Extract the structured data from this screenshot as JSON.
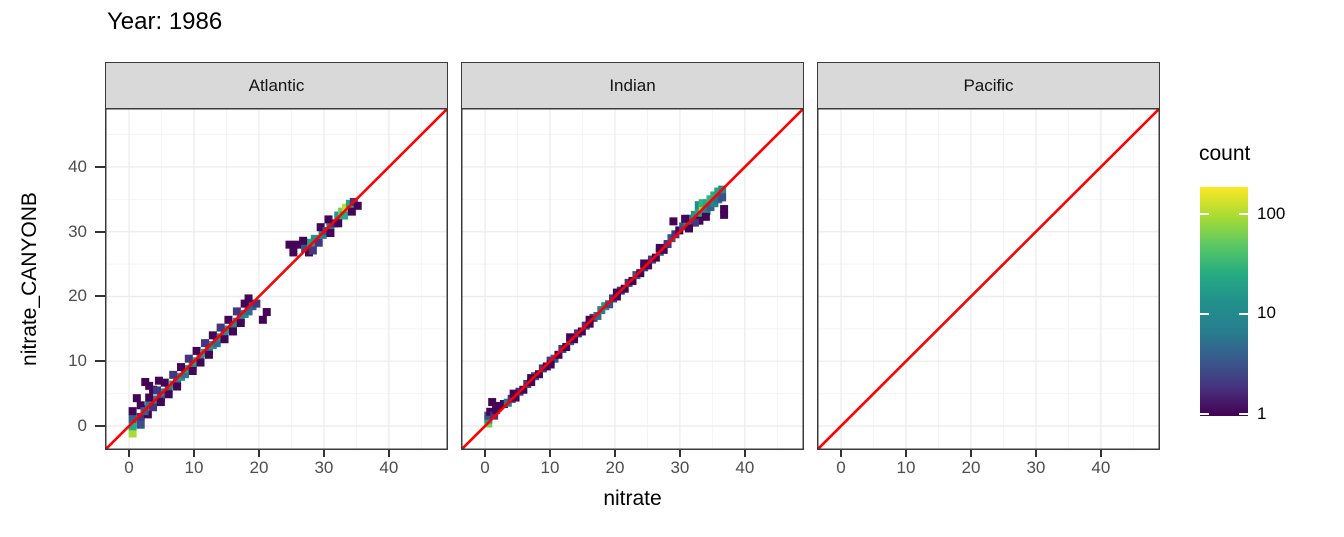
{
  "style": {
    "background": "#ffffff",
    "panel_background": "#ffffff",
    "grid_major": "#ebebeb",
    "grid_minor": "#f4f4f4",
    "panel_border": "#3b3b3b",
    "strip_background": "#d9d9d9",
    "strip_text_color": "#141414",
    "tick_label_color": "#4d4d4d",
    "tick_mark_color": "#333333",
    "title_color": "#000000"
  },
  "chart_data": {
    "type": "heatmap",
    "subtype": "bin2d",
    "title": "Year: 1986",
    "xlabel": "nitrate",
    "ylabel": "nitrate_CANYONB",
    "xlim": [
      -3.7,
      49.1
    ],
    "ylim": [
      -3.7,
      49.1
    ],
    "x_ticks": [
      0,
      10,
      20,
      30,
      40
    ],
    "y_ticks": [
      0,
      10,
      20,
      30,
      40
    ],
    "minor_ticks": [
      5,
      15,
      25,
      35,
      45
    ],
    "grid": "on",
    "legend_position": "right",
    "bin_size": 1.23,
    "reference_line": {
      "equation": "y = x",
      "color": "#ff0000",
      "width": 2.6
    },
    "color_scale": {
      "title": "count",
      "name": "viridis",
      "trans": "log10",
      "domain": [
        0.95,
        186
      ],
      "ticks": [
        100,
        10,
        1
      ],
      "stops": [
        {
          "t": 0.0,
          "color": "#440154"
        },
        {
          "t": 0.125,
          "color": "#46327e"
        },
        {
          "t": 0.25,
          "color": "#365c8d"
        },
        {
          "t": 0.375,
          "color": "#277f8e"
        },
        {
          "t": 0.5,
          "color": "#21918c"
        },
        {
          "t": 0.625,
          "color": "#27ad81"
        },
        {
          "t": 0.75,
          "color": "#5ec962"
        },
        {
          "t": 0.875,
          "color": "#aadc32"
        },
        {
          "t": 1.0,
          "color": "#fde725"
        }
      ]
    },
    "facets": [
      {
        "label": "Atlantic",
        "tiles": [
          [
            0.55,
            -1.15,
            95
          ],
          [
            0.55,
            -0.05,
            25
          ],
          [
            0.55,
            1.1,
            4
          ],
          [
            1.8,
            1.4,
            2
          ],
          [
            1.8,
            0.2,
            3
          ],
          [
            2.9,
            1.8,
            1
          ],
          [
            2.4,
            2.6,
            2
          ],
          [
            0.55,
            2.3,
            1
          ],
          [
            1.2,
            4.3,
            1
          ],
          [
            2.5,
            6.8,
            1
          ],
          [
            3.7,
            5.6,
            1
          ],
          [
            4.6,
            7.0,
            1
          ],
          [
            3.1,
            6.2,
            1
          ],
          [
            1.8,
            3.2,
            1
          ],
          [
            2.4,
            2.3,
            4
          ],
          [
            3.1,
            3.2,
            6
          ],
          [
            3.7,
            2.9,
            2
          ],
          [
            4.3,
            4.1,
            8
          ],
          [
            4.9,
            4.3,
            3
          ],
          [
            5.5,
            5.2,
            10
          ],
          [
            6.1,
            5.5,
            4
          ],
          [
            6.8,
            6.4,
            12
          ],
          [
            7.4,
            6.7,
            5
          ],
          [
            8.0,
            7.6,
            15
          ],
          [
            8.6,
            8.0,
            6
          ],
          [
            9.2,
            8.8,
            18
          ],
          [
            9.8,
            9.2,
            8
          ],
          [
            10.4,
            10.0,
            20
          ],
          [
            11.0,
            10.4,
            8
          ],
          [
            11.7,
            11.3,
            18
          ],
          [
            12.3,
            11.6,
            6
          ],
          [
            12.9,
            12.5,
            15
          ],
          [
            13.5,
            12.8,
            5
          ],
          [
            14.1,
            13.7,
            12
          ],
          [
            14.7,
            14.1,
            10
          ],
          [
            15.3,
            14.9,
            15
          ],
          [
            16.0,
            15.3,
            8
          ],
          [
            16.6,
            16.1,
            12
          ],
          [
            17.2,
            16.5,
            6
          ],
          [
            17.8,
            17.3,
            10
          ],
          [
            18.4,
            17.7,
            5
          ],
          [
            19.0,
            18.5,
            4
          ],
          [
            19.6,
            18.9,
            2
          ],
          [
            18.4,
            19.7,
            1
          ],
          [
            3.1,
            4.4,
            1
          ],
          [
            4.3,
            5.5,
            2
          ],
          [
            5.5,
            6.7,
            1
          ],
          [
            6.8,
            7.9,
            2
          ],
          [
            8.0,
            9.1,
            1
          ],
          [
            9.2,
            10.4,
            2
          ],
          [
            10.4,
            11.6,
            1
          ],
          [
            11.7,
            12.8,
            2
          ],
          [
            12.9,
            14.0,
            1
          ],
          [
            14.1,
            15.2,
            2
          ],
          [
            15.3,
            16.4,
            1
          ],
          [
            16.6,
            17.7,
            2
          ],
          [
            17.8,
            18.9,
            1
          ],
          [
            4.9,
            3.7,
            1
          ],
          [
            7.4,
            6.1,
            1
          ],
          [
            9.8,
            8.5,
            1
          ],
          [
            12.3,
            11.0,
            1
          ],
          [
            14.7,
            13.4,
            1
          ],
          [
            17.2,
            15.9,
            1
          ],
          [
            6.1,
            4.9,
            1
          ],
          [
            11.0,
            9.8,
            1
          ],
          [
            16.0,
            14.6,
            1
          ],
          [
            21.2,
            17.6,
            1
          ],
          [
            20.6,
            16.4,
            1
          ],
          [
            24.7,
            28.0,
            1
          ],
          [
            25.9,
            28.0,
            1
          ],
          [
            25.3,
            26.8,
            1
          ],
          [
            27.1,
            27.4,
            3
          ],
          [
            27.7,
            26.8,
            1
          ],
          [
            28.0,
            28.3,
            20
          ],
          [
            28.6,
            28.9,
            15
          ],
          [
            29.2,
            28.3,
            2
          ],
          [
            29.8,
            29.5,
            8
          ],
          [
            29.5,
            30.7,
            1
          ],
          [
            30.4,
            30.1,
            3
          ],
          [
            31.0,
            30.7,
            5
          ],
          [
            31.6,
            31.3,
            2
          ],
          [
            31.0,
            29.8,
            1
          ],
          [
            32.2,
            32.5,
            18
          ],
          [
            32.8,
            33.1,
            60
          ],
          [
            33.4,
            33.7,
            110
          ],
          [
            33.1,
            32.5,
            25
          ],
          [
            34.0,
            34.3,
            20
          ],
          [
            34.6,
            34.6,
            2
          ],
          [
            34.3,
            33.1,
            1
          ],
          [
            35.2,
            34.0,
            1
          ],
          [
            32.2,
            31.3,
            1
          ],
          [
            30.7,
            31.9,
            1
          ],
          [
            28.3,
            27.1,
            2
          ],
          [
            26.8,
            28.6,
            1
          ]
        ]
      },
      {
        "label": "Indian",
        "tiles": [
          [
            0.5,
            0.4,
            60
          ],
          [
            0.5,
            1.0,
            20
          ],
          [
            0.5,
            1.6,
            3
          ],
          [
            0.8,
            2.2,
            1
          ],
          [
            1.4,
            1.6,
            2
          ],
          [
            1.7,
            2.5,
            1
          ],
          [
            2.0,
            3.1,
            1
          ],
          [
            1.1,
            3.7,
            1
          ],
          [
            2.9,
            3.4,
            1
          ],
          [
            3.5,
            3.6,
            6
          ],
          [
            4.1,
            4.2,
            2
          ],
          [
            4.7,
            4.4,
            1
          ],
          [
            5.3,
            5.3,
            2
          ],
          [
            5.9,
            5.6,
            1
          ],
          [
            6.5,
            6.5,
            2
          ],
          [
            7.1,
            6.8,
            1
          ],
          [
            7.7,
            7.7,
            3
          ],
          [
            8.3,
            8.0,
            1
          ],
          [
            8.9,
            8.9,
            2
          ],
          [
            9.5,
            9.2,
            1
          ],
          [
            10.1,
            10.1,
            2
          ],
          [
            10.7,
            10.4,
            3
          ],
          [
            11.3,
            11.0,
            1
          ],
          [
            11.9,
            11.9,
            2
          ],
          [
            12.5,
            12.2,
            1
          ],
          [
            13.1,
            13.1,
            3
          ],
          [
            13.7,
            13.4,
            1
          ],
          [
            14.3,
            14.3,
            2
          ],
          [
            14.9,
            14.6,
            1
          ],
          [
            15.5,
            15.5,
            2
          ],
          [
            16.1,
            15.8,
            1
          ],
          [
            16.7,
            16.7,
            2
          ],
          [
            17.3,
            17.0,
            5
          ],
          [
            17.9,
            17.9,
            8
          ],
          [
            18.5,
            18.5,
            15
          ],
          [
            19.1,
            18.8,
            3
          ],
          [
            19.7,
            19.7,
            2
          ],
          [
            20.3,
            20.0,
            1
          ],
          [
            20.9,
            20.9,
            2
          ],
          [
            21.5,
            21.2,
            1
          ],
          [
            22.1,
            22.1,
            2
          ],
          [
            22.7,
            22.4,
            1
          ],
          [
            23.3,
            23.3,
            3
          ],
          [
            23.9,
            23.6,
            1
          ],
          [
            24.5,
            24.5,
            2
          ],
          [
            25.1,
            24.8,
            1
          ],
          [
            25.7,
            25.7,
            2
          ],
          [
            26.3,
            26.0,
            1
          ],
          [
            26.9,
            26.9,
            3
          ],
          [
            27.5,
            27.2,
            1
          ],
          [
            28.1,
            28.1,
            2
          ],
          [
            28.7,
            29.0,
            3
          ],
          [
            29.3,
            29.6,
            2
          ],
          [
            29.9,
            30.2,
            1
          ],
          [
            30.5,
            30.8,
            3
          ],
          [
            10.1,
            9.5,
            1
          ],
          [
            13.1,
            13.7,
            1
          ],
          [
            16.1,
            16.4,
            1
          ],
          [
            24.5,
            25.1,
            1
          ],
          [
            26.9,
            27.5,
            1
          ],
          [
            20.3,
            20.6,
            1
          ],
          [
            7.1,
            7.4,
            1
          ],
          [
            4.4,
            5.0,
            1
          ],
          [
            29.0,
            31.6,
            1
          ],
          [
            31.1,
            31.4,
            8
          ],
          [
            31.7,
            32.0,
            5
          ],
          [
            32.3,
            32.6,
            15
          ],
          [
            32.9,
            32.9,
            20
          ],
          [
            32.9,
            34.1,
            12
          ],
          [
            33.5,
            33.8,
            90
          ],
          [
            33.5,
            34.4,
            30
          ],
          [
            34.1,
            34.4,
            25
          ],
          [
            34.1,
            33.2,
            10
          ],
          [
            34.7,
            35.0,
            30
          ],
          [
            34.7,
            33.8,
            4
          ],
          [
            35.3,
            35.6,
            25
          ],
          [
            35.3,
            34.4,
            8
          ],
          [
            35.9,
            36.2,
            20
          ],
          [
            35.9,
            35.0,
            5
          ],
          [
            36.5,
            36.5,
            12
          ],
          [
            33.0,
            31.7,
            1
          ],
          [
            34.0,
            32.3,
            1
          ],
          [
            36.8,
            33.5,
            1
          ],
          [
            36.8,
            32.6,
            1
          ],
          [
            32.3,
            31.4,
            2
          ],
          [
            31.4,
            30.5,
            1
          ],
          [
            36.5,
            35.3,
            3
          ],
          [
            30.8,
            32.0,
            1
          ]
        ]
      },
      {
        "label": "Pacific",
        "tiles": []
      }
    ]
  }
}
